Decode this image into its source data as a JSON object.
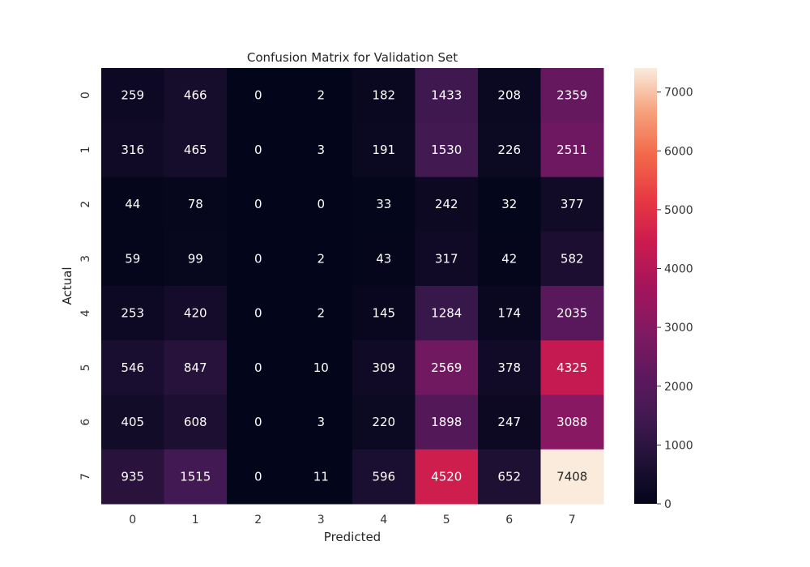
{
  "chart_data": {
    "type": "heatmap",
    "title": "Confusion Matrix for Validation Set",
    "xlabel": "Predicted",
    "ylabel": "Actual",
    "x_categories": [
      "0",
      "1",
      "2",
      "3",
      "4",
      "5",
      "6",
      "7"
    ],
    "y_categories": [
      "0",
      "1",
      "2",
      "3",
      "4",
      "5",
      "6",
      "7"
    ],
    "values": [
      [
        259,
        466,
        0,
        2,
        182,
        1433,
        208,
        2359
      ],
      [
        316,
        465,
        0,
        3,
        191,
        1530,
        226,
        2511
      ],
      [
        44,
        78,
        0,
        0,
        33,
        242,
        32,
        377
      ],
      [
        59,
        99,
        0,
        2,
        43,
        317,
        42,
        582
      ],
      [
        253,
        420,
        0,
        2,
        145,
        1284,
        174,
        2035
      ],
      [
        546,
        847,
        0,
        10,
        309,
        2569,
        378,
        4325
      ],
      [
        405,
        608,
        0,
        3,
        220,
        1898,
        247,
        3088
      ],
      [
        935,
        1515,
        0,
        11,
        596,
        4520,
        652,
        7408
      ]
    ],
    "colorbar": {
      "min": 0,
      "max": 7408,
      "ticks": [
        0,
        1000,
        2000,
        3000,
        4000,
        5000,
        6000,
        7000
      ],
      "colormap": "rocket"
    },
    "grid": false
  }
}
